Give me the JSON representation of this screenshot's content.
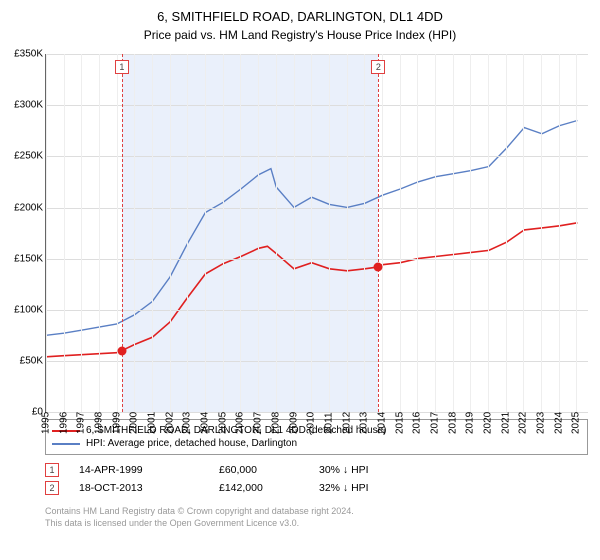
{
  "title": "6, SMITHFIELD ROAD, DARLINGTON, DL1 4DD",
  "subtitle": "Price paid vs. HM Land Registry's House Price Index (HPI)",
  "chart": {
    "type": "line",
    "ylim": [
      0,
      350000
    ],
    "ytick_step": 50000,
    "y_prefix": "£",
    "y_suffix": "K",
    "y_divide": 1000,
    "x_years": [
      1995,
      1996,
      1997,
      1998,
      1999,
      2000,
      2001,
      2002,
      2003,
      2004,
      2005,
      2006,
      2007,
      2008,
      2009,
      2010,
      2011,
      2012,
      2013,
      2014,
      2015,
      2016,
      2017,
      2018,
      2019,
      2020,
      2021,
      2022,
      2023,
      2024,
      2025
    ],
    "xlim": [
      1995,
      2025.6
    ],
    "hpi_band": {
      "from": 1999.29,
      "to": 2013.8,
      "color": "#eaf0fb"
    },
    "grid_color": "#dddddd",
    "background_color": "#ffffff",
    "series": [
      {
        "name": "price-paid",
        "color": "#e02020",
        "width": 1.6,
        "points": [
          [
            1995,
            54000
          ],
          [
            1996,
            55000
          ],
          [
            1997,
            56000
          ],
          [
            1998,
            57000
          ],
          [
            1999,
            58000
          ],
          [
            1999.29,
            60000
          ],
          [
            2000,
            66000
          ],
          [
            2001,
            73000
          ],
          [
            2002,
            88000
          ],
          [
            2003,
            112000
          ],
          [
            2004,
            135000
          ],
          [
            2005,
            145000
          ],
          [
            2006,
            152000
          ],
          [
            2007,
            160000
          ],
          [
            2007.5,
            162000
          ],
          [
            2008,
            155000
          ],
          [
            2009,
            140000
          ],
          [
            2010,
            146000
          ],
          [
            2011,
            140000
          ],
          [
            2012,
            138000
          ],
          [
            2013,
            140000
          ],
          [
            2013.8,
            142000
          ],
          [
            2014,
            144000
          ],
          [
            2015,
            146000
          ],
          [
            2016,
            150000
          ],
          [
            2017,
            152000
          ],
          [
            2018,
            154000
          ],
          [
            2019,
            156000
          ],
          [
            2020,
            158000
          ],
          [
            2021,
            166000
          ],
          [
            2022,
            178000
          ],
          [
            2023,
            180000
          ],
          [
            2024,
            182000
          ],
          [
            2025,
            185000
          ]
        ]
      },
      {
        "name": "hpi",
        "color": "#5a7fc4",
        "width": 1.4,
        "points": [
          [
            1995,
            75000
          ],
          [
            1996,
            77000
          ],
          [
            1997,
            80000
          ],
          [
            1998,
            83000
          ],
          [
            1999,
            86000
          ],
          [
            2000,
            95000
          ],
          [
            2001,
            108000
          ],
          [
            2002,
            132000
          ],
          [
            2003,
            165000
          ],
          [
            2004,
            195000
          ],
          [
            2005,
            205000
          ],
          [
            2006,
            218000
          ],
          [
            2007,
            232000
          ],
          [
            2007.7,
            238000
          ],
          [
            2008,
            220000
          ],
          [
            2009,
            200000
          ],
          [
            2010,
            210000
          ],
          [
            2011,
            203000
          ],
          [
            2012,
            200000
          ],
          [
            2013,
            204000
          ],
          [
            2014,
            212000
          ],
          [
            2015,
            218000
          ],
          [
            2016,
            225000
          ],
          [
            2017,
            230000
          ],
          [
            2018,
            233000
          ],
          [
            2019,
            236000
          ],
          [
            2020,
            240000
          ],
          [
            2021,
            258000
          ],
          [
            2022,
            278000
          ],
          [
            2023,
            272000
          ],
          [
            2024,
            280000
          ],
          [
            2025,
            285000
          ]
        ]
      }
    ],
    "sale_markers": [
      {
        "n": "1",
        "x": 1999.29,
        "y": 60000
      },
      {
        "n": "2",
        "x": 2013.8,
        "y": 142000
      }
    ]
  },
  "legend": [
    {
      "color": "#e02020",
      "label": "6, SMITHFIELD ROAD, DARLINGTON, DL1 4DD (detached house)"
    },
    {
      "color": "#5a7fc4",
      "label": "HPI: Average price, detached house, Darlington"
    }
  ],
  "sales": [
    {
      "n": "1",
      "date": "14-APR-1999",
      "price": "£60,000",
      "delta": "30% ↓ HPI"
    },
    {
      "n": "2",
      "date": "18-OCT-2013",
      "price": "£142,000",
      "delta": "32% ↓ HPI"
    }
  ],
  "footer": [
    "Contains HM Land Registry data © Crown copyright and database right 2024.",
    "This data is licensed under the Open Government Licence v3.0."
  ]
}
